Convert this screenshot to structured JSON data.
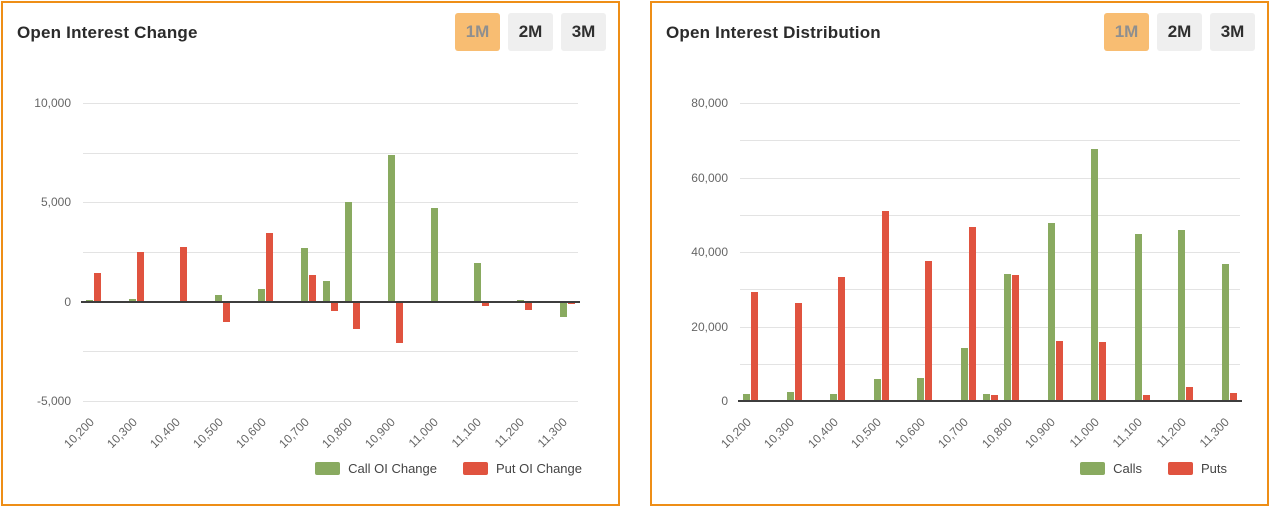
{
  "panels": [
    {
      "title": "Open Interest Change",
      "buttons": [
        {
          "label": "1M",
          "active": true
        },
        {
          "label": "2M",
          "active": false
        },
        {
          "label": "3M",
          "active": false
        }
      ]
    },
    {
      "title": "Open Interest Distribution",
      "buttons": [
        {
          "label": "1M",
          "active": true
        },
        {
          "label": "2M",
          "active": false
        },
        {
          "label": "3M",
          "active": false
        }
      ]
    }
  ],
  "colors": {
    "panel_border": "#ee8e17",
    "active_button_bg": "#f8bd72",
    "call_green": "#89aa60",
    "put_red": "#e0533f",
    "gridline": "#e3e3e3",
    "axis_line": "#3d3d3d"
  },
  "chart_data": [
    {
      "type": "bar",
      "title": "Open Interest Change",
      "x_range": [
        10200,
        11300
      ],
      "x_slot": 50,
      "x": [
        10200,
        10300,
        10400,
        10500,
        10600,
        10700,
        10750,
        10800,
        10900,
        11000,
        11100,
        11200,
        11300
      ],
      "series": [
        {
          "name": "Call OI Change",
          "color": "#89aa60",
          "values": [
            100,
            150,
            40,
            320,
            660,
            2690,
            1020,
            5000,
            7360,
            4730,
            1930,
            60,
            -760
          ]
        },
        {
          "name": "Put OI Change",
          "color": "#e0533f",
          "values": [
            1450,
            2520,
            2760,
            -1010,
            3480,
            1340,
            -490,
            -1400,
            -2070,
            0,
            -230,
            -400,
            -100
          ]
        }
      ],
      "ylim": [
        -5000,
        10000
      ],
      "y_grid_step": 2500,
      "y_ticks": [
        {
          "v": -5000,
          "label": "-5,000"
        },
        {
          "v": 0,
          "label": "0"
        },
        {
          "v": 5000,
          "label": "5,000"
        },
        {
          "v": 10000,
          "label": "10,000"
        }
      ],
      "x_ticks": [
        {
          "v": 10200,
          "label": "10,200"
        },
        {
          "v": 10300,
          "label": "10,300"
        },
        {
          "v": 10400,
          "label": "10,400"
        },
        {
          "v": 10500,
          "label": "10,500"
        },
        {
          "v": 10600,
          "label": "10,600"
        },
        {
          "v": 10700,
          "label": "10,700"
        },
        {
          "v": 10800,
          "label": "10,800"
        },
        {
          "v": 10900,
          "label": "10,900"
        },
        {
          "v": 11000,
          "label": "11,000"
        },
        {
          "v": 11100,
          "label": "11,100"
        },
        {
          "v": 11200,
          "label": "11,200"
        },
        {
          "v": 11300,
          "label": "11,300"
        }
      ],
      "grid": true,
      "legend_position": "bottom-right"
    },
    {
      "type": "bar",
      "title": "Open Interest Distribution",
      "x_range": [
        10200,
        11300
      ],
      "x_slot": 50,
      "x": [
        10200,
        10300,
        10400,
        10500,
        10600,
        10700,
        10750,
        10800,
        10900,
        11000,
        11100,
        11200,
        11300
      ],
      "series": [
        {
          "name": "Calls",
          "color": "#89aa60",
          "values": [
            1900,
            2400,
            1900,
            5800,
            6200,
            14300,
            1800,
            34100,
            47800,
            67700,
            44800,
            46000,
            36800
          ]
        },
        {
          "name": "Puts",
          "color": "#e0533f",
          "values": [
            29200,
            26200,
            33300,
            51000,
            37700,
            46600,
            1500,
            33900,
            16200,
            15800,
            1700,
            3700,
            2200
          ]
        }
      ],
      "ylim": [
        0,
        80000
      ],
      "y_grid_step": 10000,
      "y_ticks": [
        {
          "v": 0,
          "label": "0"
        },
        {
          "v": 20000,
          "label": "20,000"
        },
        {
          "v": 40000,
          "label": "40,000"
        },
        {
          "v": 60000,
          "label": "60,000"
        },
        {
          "v": 80000,
          "label": "80,000"
        }
      ],
      "x_ticks": [
        {
          "v": 10200,
          "label": "10,200"
        },
        {
          "v": 10300,
          "label": "10,300"
        },
        {
          "v": 10400,
          "label": "10,400"
        },
        {
          "v": 10500,
          "label": "10,500"
        },
        {
          "v": 10600,
          "label": "10,600"
        },
        {
          "v": 10700,
          "label": "10,700"
        },
        {
          "v": 10800,
          "label": "10,800"
        },
        {
          "v": 10900,
          "label": "10,900"
        },
        {
          "v": 11000,
          "label": "11,000"
        },
        {
          "v": 11100,
          "label": "11,100"
        },
        {
          "v": 11200,
          "label": "11,200"
        },
        {
          "v": 11300,
          "label": "11,300"
        }
      ],
      "grid": true,
      "legend_position": "bottom-right"
    }
  ]
}
